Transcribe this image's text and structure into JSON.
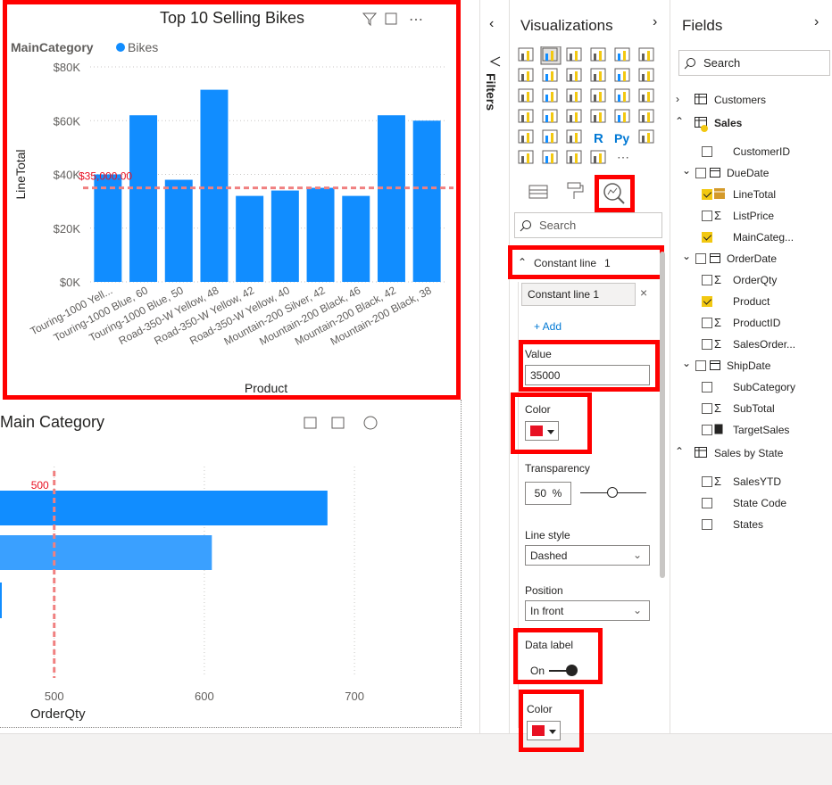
{
  "bar_chart": {
    "title": "Top 10 Selling Bikes",
    "legend_label": "MainCategory",
    "legend_series": "Bikes",
    "series_color": "#118dff",
    "constant_line_label": "$35,000.00",
    "xlabel": "Product",
    "ylabel": "LineTotal"
  },
  "chart_data": [
    {
      "type": "bar",
      "title": "Top 10 Selling Bikes",
      "xlabel": "Product",
      "ylabel": "LineTotal",
      "ylim": [
        0,
        80000
      ],
      "yticks": [
        "$0K",
        "$20K",
        "$40K",
        "$60K",
        "$80K"
      ],
      "categories": [
        "Touring-1000 Yell...",
        "Touring-1000 Blue, 60",
        "Touring-1000 Blue, 50",
        "Road-350-W Yellow, 48",
        "Road-350-W Yellow, 42",
        "Road-350-W Yellow, 40",
        "Mountain-200 Silver, 42",
        "Mountain-200 Black, 46",
        "Mountain-200 Black, 42",
        "Mountain-200 Black, 38"
      ],
      "series": [
        {
          "name": "Bikes",
          "values": [
            40000,
            62000,
            38000,
            71500,
            32000,
            34000,
            35000,
            32000,
            62000,
            60000
          ]
        }
      ],
      "constant_line": 35000,
      "legend": "top-left"
    },
    {
      "type": "bar",
      "orientation": "horizontal",
      "title": "Main Category",
      "xlabel": "OrderQty",
      "xticks": [
        "500",
        "600",
        "700"
      ],
      "constant_line": 500,
      "constant_line_label": "500",
      "values": [
        682,
        605
      ]
    }
  ],
  "bottom_chart": {
    "title": "Main Category",
    "constant_line_label": "500",
    "xlabel": "OrderQty",
    "ticks": [
      "500",
      "600",
      "700"
    ]
  },
  "filters": {
    "label": "Filters"
  },
  "viz_pane": {
    "title": "Visualizations",
    "search_placeholder": "Search",
    "section_title": "Constant line",
    "section_count": "1",
    "line_item": "Constant line 1",
    "add_label": "+ Add",
    "value_label": "Value",
    "value": "35000",
    "color_label": "Color",
    "transparency_label": "Transparency",
    "transparency_value": "50",
    "transparency_unit": "%",
    "line_style_label": "Line style",
    "line_style_value": "Dashed",
    "position_label": "Position",
    "position_value": "In front",
    "data_label_label": "Data label",
    "data_label_state": "On",
    "color2_label": "Color",
    "accent_color": "#e81123"
  },
  "fields_pane": {
    "title": "Fields",
    "search_placeholder": "Search",
    "tables": [
      {
        "name": "Customers"
      },
      {
        "name": "Sales"
      },
      {
        "name": "Sales by State"
      }
    ],
    "sales_fields": [
      "CustomerID",
      "DueDate",
      "LineTotal",
      "ListPrice",
      "MainCateg...",
      "OrderDate",
      "OrderQty",
      "Product",
      "ProductID",
      "SalesOrder...",
      "ShipDate",
      "SubCategory",
      "SubTotal",
      "TargetSales"
    ],
    "state_fields": [
      "SalesYTD",
      "State Code",
      "States"
    ]
  }
}
